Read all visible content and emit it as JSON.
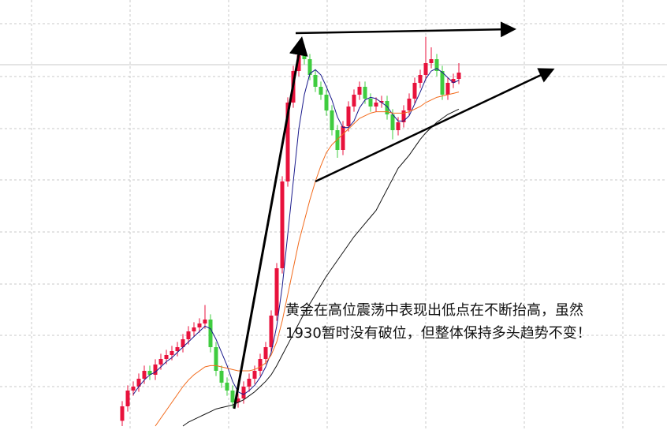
{
  "chart_data": {
    "type": "candlestick",
    "annotations": [
      "黄金在高位震荡中表现出低点在不断抬高，虽然",
      "1930暂时没有破位，但整体保持多头趋势不变！"
    ],
    "ylim": [
      1778.5,
      1942
    ],
    "up_color": "#e8123c",
    "down_color": "#3fcc3f",
    "open": [
      1782,
      1787.5,
      1793.5,
      1795,
      1798,
      1801,
      1799.5,
      1803.4,
      1805.5,
      1807,
      1808.5,
      1810,
      1813,
      1816,
      1817.5,
      1819,
      1820.5,
      1810,
      1801,
      1796.5,
      1793.5,
      1789,
      1790.5,
      1795,
      1798,
      1801,
      1805.5,
      1810,
      1822,
      1840,
      1873,
      1903,
      1915,
      1921,
      1919.5,
      1913.5,
      1909,
      1906,
      1900,
      1892.5,
      1885,
      1894,
      1901.5,
      1906,
      1909,
      1904.5,
      1901.5,
      1903,
      1903.6,
      1898.5,
      1892.5,
      1895.5,
      1900,
      1904.5,
      1910.5,
      1913.5,
      1918,
      1919.5,
      1915,
      1906,
      1910.5,
      1912
    ],
    "high": [
      1789.5,
      1795.5,
      1797,
      1800,
      1803,
      1803,
      1805.4,
      1807.5,
      1809,
      1810.5,
      1812,
      1815,
      1818,
      1819.5,
      1821,
      1826,
      1822.5,
      1812,
      1803,
      1798.5,
      1795.5,
      1792.5,
      1797,
      1800,
      1803,
      1807.5,
      1812,
      1824,
      1842,
      1875,
      1905,
      1917,
      1923,
      1925,
      1921.5,
      1915.5,
      1911,
      1908,
      1902,
      1894.5,
      1896,
      1903.5,
      1908,
      1911,
      1911,
      1906.5,
      1905,
      1905.6,
      1905.6,
      1900.5,
      1897.5,
      1902,
      1906.5,
      1912.5,
      1915.5,
      1928,
      1924,
      1921.5,
      1917,
      1912.5,
      1914,
      1918
    ],
    "low": [
      1780,
      1785.5,
      1791.5,
      1793,
      1796,
      1797.5,
      1797.5,
      1801.4,
      1803.5,
      1805,
      1806.5,
      1808,
      1811,
      1814,
      1815.5,
      1817,
      1808,
      1799,
      1794.5,
      1791.5,
      1787,
      1787,
      1788.5,
      1793,
      1796,
      1799,
      1803.5,
      1808,
      1820,
      1838,
      1871,
      1901,
      1913,
      1917.5,
      1911.5,
      1907,
      1904,
      1898,
      1890.5,
      1882,
      1883,
      1892,
      1899.5,
      1904,
      1902.5,
      1899.5,
      1899.5,
      1901,
      1896.5,
      1889,
      1890.5,
      1893.5,
      1898,
      1902.5,
      1908.5,
      1911.5,
      1916,
      1913,
      1904,
      1904,
      1908.5,
      1910
    ],
    "close": [
      1787.5,
      1793.5,
      1795,
      1798,
      1801,
      1799.5,
      1803.4,
      1805.5,
      1807,
      1808.5,
      1810,
      1813,
      1816,
      1817.5,
      1819,
      1820.5,
      1810,
      1801,
      1796.5,
      1793.5,
      1789,
      1790.5,
      1795,
      1798,
      1801,
      1805.5,
      1810,
      1822,
      1840,
      1873,
      1903,
      1915,
      1921,
      1919.5,
      1913.5,
      1909,
      1906,
      1900,
      1892.5,
      1885,
      1894,
      1901.5,
      1906,
      1909,
      1904.5,
      1901.5,
      1903,
      1903.6,
      1898.5,
      1892.5,
      1895.5,
      1900,
      1904.5,
      1910.5,
      1913.5,
      1918,
      1919.5,
      1915,
      1906,
      1910.5,
      1912,
      1914.4
    ],
    "series": [
      {
        "color": "#1a1a8c",
        "values": [
          null,
          null,
          1792,
          1795,
          1797.5,
          1799.5,
          1800.5,
          1802.5,
          1804.5,
          1806,
          1808,
          1810,
          1812,
          1814,
          1816,
          1818,
          1817,
          1813,
          1808,
          1803,
          1797,
          1793,
          1792,
          1793.5,
          1795.5,
          1798.5,
          1802.5,
          1808,
          1818,
          1833,
          1853,
          1873,
          1893,
          1906,
          1914,
          1915.5,
          1913.5,
          1909,
          1904,
          1897.5,
          1893.5,
          1893.5,
          1896,
          1901,
          1904,
          1905,
          1904.5,
          1903,
          1901.5,
          1898.5,
          1896,
          1896,
          1898,
          1902.5,
          1907,
          1912,
          1915,
          1916,
          1914.5,
          1912.5,
          1910.5,
          1911.5
        ]
      },
      {
        "color": "#f26a1b",
        "values": [
          null,
          null,
          null,
          null,
          null,
          null,
          1780,
          1783,
          1786,
          1789,
          1792,
          1795,
          1797.5,
          1799.5,
          1801,
          1802.5,
          1803,
          1803,
          1802.5,
          1802,
          1801.5,
          1801,
          1801,
          1801,
          1801.5,
          1802.5,
          1804,
          1807,
          1812,
          1820,
          1830,
          1840,
          1850,
          1858,
          1866,
          1873,
          1879,
          1884,
          1887,
          1889,
          1891,
          1893,
          1895,
          1897,
          1898,
          1899,
          1899.5,
          1899.5,
          1899.5,
          1899,
          1899,
          1899,
          1899.5,
          1900.5,
          1901.5,
          1903,
          1904,
          1905,
          1905.5,
          1906,
          1906.5,
          1907
        ]
      },
      {
        "color": "#111111",
        "values": [
          null,
          null,
          null,
          null,
          null,
          null,
          null,
          null,
          null,
          null,
          null,
          1780,
          1781.5,
          1782.5,
          1783.5,
          1784.5,
          1785.5,
          1786.5,
          1787,
          1787.5,
          1788,
          1789,
          1790,
          1791.5,
          1793,
          1795,
          1797,
          1799.5,
          1803,
          1807,
          1811,
          1815,
          1819,
          1823,
          1826.5,
          1830,
          1833.5,
          1837,
          1840,
          1843,
          1846,
          1849,
          1852,
          1854.5,
          1857,
          1859.5,
          1862,
          1866,
          1870,
          1874,
          1878,
          1880.5,
          1883,
          1886,
          1889,
          1891.5,
          1893.5,
          1895.5,
          1897,
          1898.5,
          1899.5,
          1900.5
        ]
      }
    ]
  }
}
